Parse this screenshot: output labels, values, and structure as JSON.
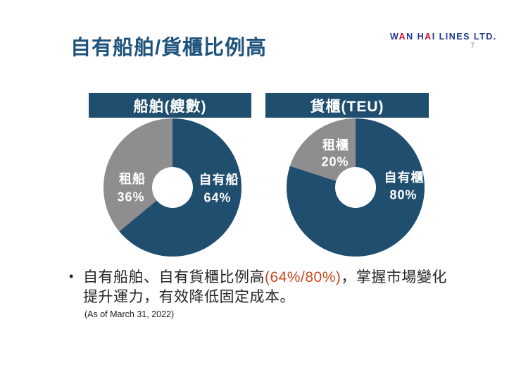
{
  "header": {
    "title": "自有船舶/貨櫃比例高",
    "page_number": "7",
    "logo_parts": {
      "p1": "W",
      "p2": "A",
      "p3": "N H",
      "p4": "A",
      "p5": "I LINES LTD."
    }
  },
  "chart_data": [
    {
      "type": "pie",
      "subtype": "donut",
      "title": "船舶(艘數)",
      "labels": [
        "自有船",
        "租船"
      ],
      "values": [
        64,
        36
      ],
      "value_labels": [
        "64%",
        "36%"
      ],
      "colors": [
        "#1F4E6F",
        "#8E8E8E"
      ],
      "donut_hole_ratio": 0.3,
      "start_angle_deg": 0,
      "direction": "clockwise",
      "legend": "none"
    },
    {
      "type": "pie",
      "subtype": "donut",
      "title": "貨櫃(TEU)",
      "labels": [
        "自有櫃",
        "租櫃"
      ],
      "values": [
        80,
        20
      ],
      "value_labels": [
        "80%",
        "20%"
      ],
      "colors": [
        "#1F4E6F",
        "#8E8E8E"
      ],
      "donut_hole_ratio": 0.3,
      "start_angle_deg": 0,
      "direction": "clockwise",
      "legend": "none"
    }
  ],
  "commentary": {
    "bullet_marker": "•",
    "text_before_highlight": "自有船舶、自有貨櫃比例高",
    "highlight": "(64%/80%)",
    "text_after_highlight": "，掌握市場變化提升運力，有效降低固定成本。",
    "footnote": "(As of March 31, 2022)"
  },
  "theme": {
    "title_color": "#1E537C",
    "header_bar_color": "#1F4E6F",
    "pie_primary_color": "#1F4E6F",
    "pie_secondary_color": "#8E8E8E",
    "highlight_color": "#C5491D",
    "logo_blue": "#1F3B8C",
    "logo_red": "#C8102E",
    "background": "#FFFFFF"
  }
}
